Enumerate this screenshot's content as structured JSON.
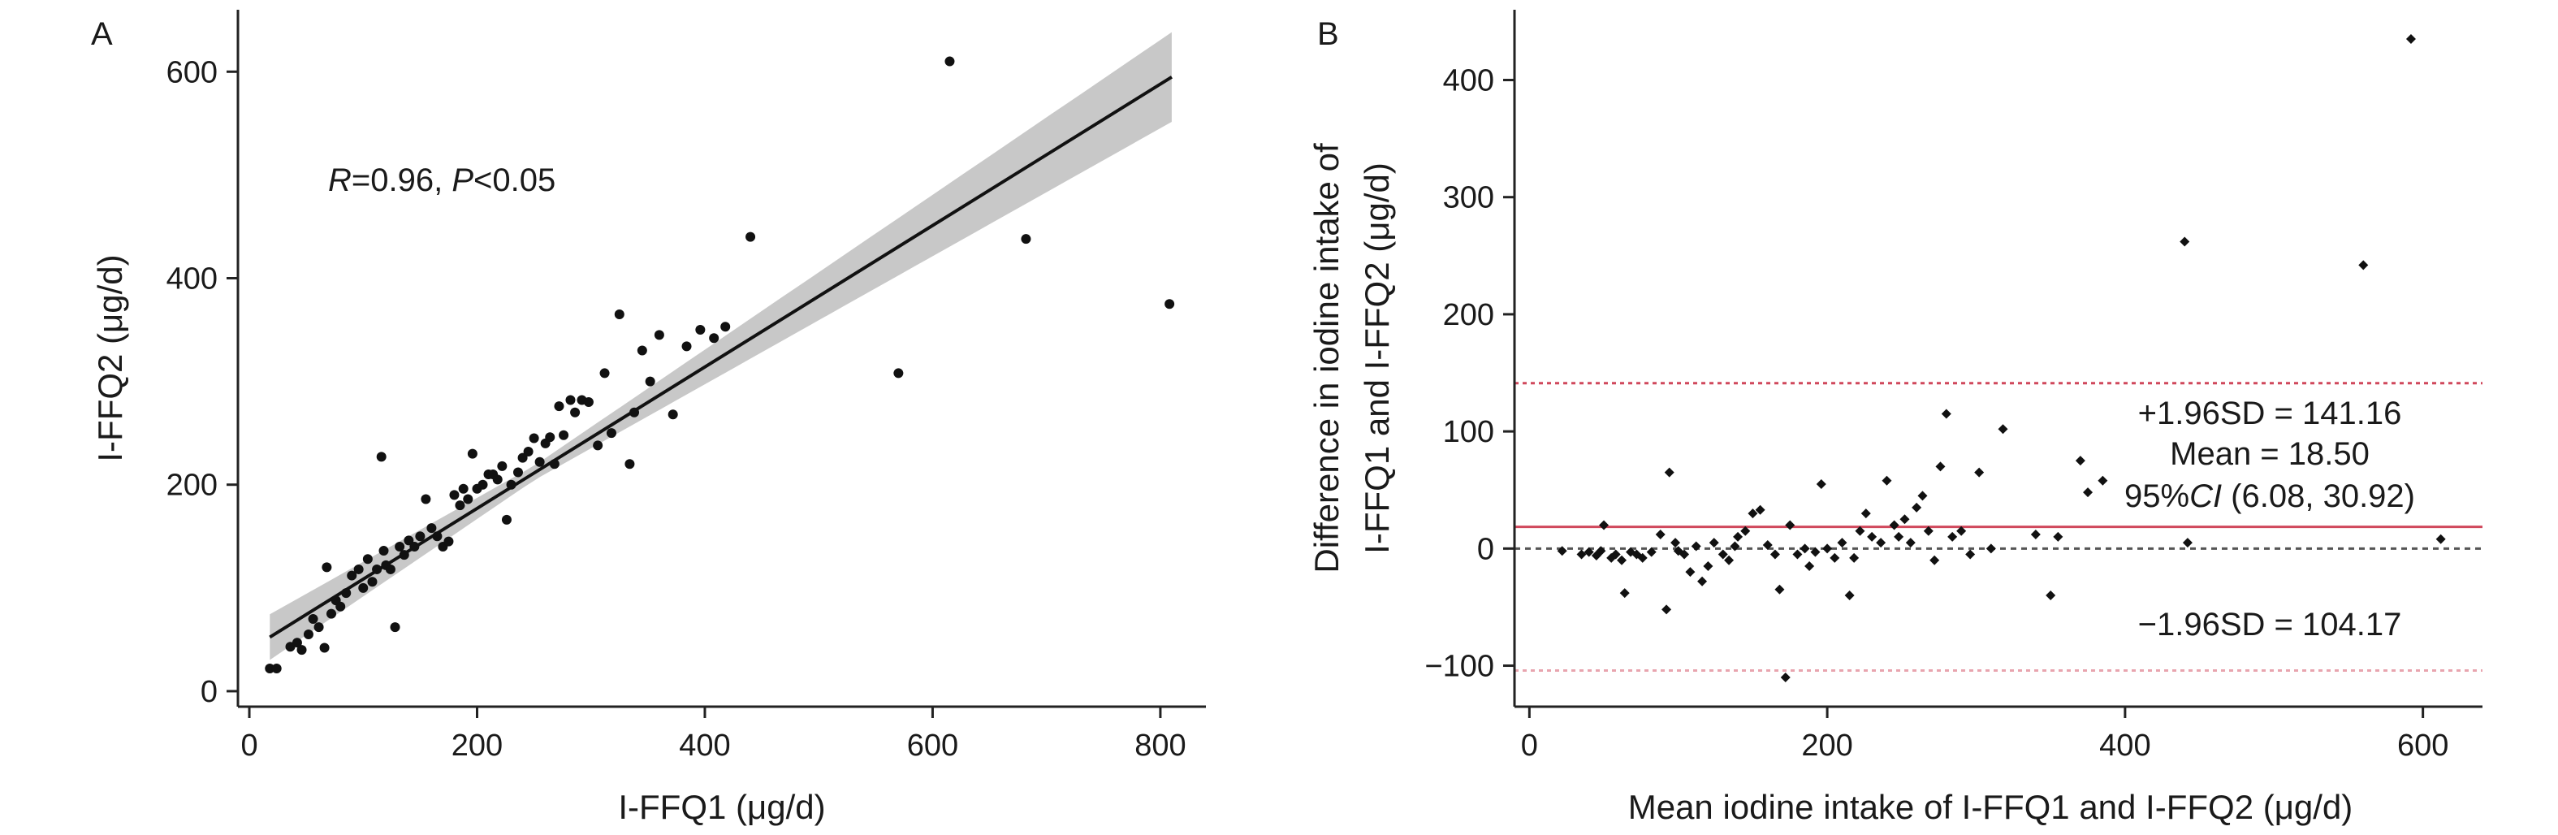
{
  "chart_data": [
    {
      "panel": "A",
      "type": "scatter",
      "xlabel": "I-FFQ1 (μg/d)",
      "ylabel": "I-FFQ2 (μg/d)",
      "xlim": [
        -10,
        840
      ],
      "ylim": [
        -15,
        660
      ],
      "xticks": [
        "0",
        "200",
        "400",
        "600",
        "800"
      ],
      "yticks": [
        "0",
        "200",
        "400",
        "600"
      ],
      "annotation": {
        "R": "R",
        "r_value": "=0.96, ",
        "P": "P",
        "p_value": "<0.05"
      },
      "regression": {
        "intercept": 40,
        "slope": 0.685,
        "x_range": [
          18,
          810
        ]
      },
      "points": [
        [
          18,
          22
        ],
        [
          24,
          22
        ],
        [
          36,
          43
        ],
        [
          42,
          47
        ],
        [
          46,
          40
        ],
        [
          52,
          55
        ],
        [
          56,
          70
        ],
        [
          61,
          62
        ],
        [
          66,
          42
        ],
        [
          68,
          120
        ],
        [
          72,
          75
        ],
        [
          76,
          88
        ],
        [
          80,
          82
        ],
        [
          85,
          95
        ],
        [
          90,
          112
        ],
        [
          96,
          118
        ],
        [
          100,
          100
        ],
        [
          104,
          128
        ],
        [
          108,
          106
        ],
        [
          112,
          118
        ],
        [
          116,
          227
        ],
        [
          118,
          136
        ],
        [
          120,
          122
        ],
        [
          124,
          118
        ],
        [
          128,
          62
        ],
        [
          132,
          140
        ],
        [
          136,
          132
        ],
        [
          140,
          146
        ],
        [
          145,
          140
        ],
        [
          150,
          150
        ],
        [
          155,
          186
        ],
        [
          160,
          158
        ],
        [
          165,
          150
        ],
        [
          170,
          140
        ],
        [
          175,
          145
        ],
        [
          180,
          190
        ],
        [
          185,
          180
        ],
        [
          188,
          196
        ],
        [
          192,
          186
        ],
        [
          196,
          230
        ],
        [
          200,
          196
        ],
        [
          205,
          200
        ],
        [
          210,
          210
        ],
        [
          214,
          210
        ],
        [
          218,
          205
        ],
        [
          222,
          218
        ],
        [
          226,
          166
        ],
        [
          230,
          200
        ],
        [
          236,
          212
        ],
        [
          240,
          226
        ],
        [
          245,
          232
        ],
        [
          250,
          245
        ],
        [
          255,
          222
        ],
        [
          260,
          240
        ],
        [
          264,
          246
        ],
        [
          268,
          220
        ],
        [
          272,
          276
        ],
        [
          276,
          248
        ],
        [
          282,
          282
        ],
        [
          286,
          270
        ],
        [
          292,
          282
        ],
        [
          298,
          280
        ],
        [
          306,
          238
        ],
        [
          312,
          308
        ],
        [
          318,
          250
        ],
        [
          325,
          365
        ],
        [
          334,
          220
        ],
        [
          338,
          270
        ],
        [
          345,
          330
        ],
        [
          352,
          300
        ],
        [
          360,
          345
        ],
        [
          372,
          268
        ],
        [
          384,
          334
        ],
        [
          396,
          350
        ],
        [
          408,
          342
        ],
        [
          418,
          353
        ],
        [
          440,
          440
        ],
        [
          570,
          308
        ],
        [
          615,
          610
        ],
        [
          682,
          438
        ],
        [
          808,
          375
        ]
      ]
    },
    {
      "panel": "B",
      "type": "scatter",
      "xlabel": "Mean iodine intake of I-FFQ1 and I-FFQ2 (μg/d)",
      "ylabel_line1": "Difference in iodine intake of",
      "ylabel_line2": "I-FFQ1 and I-FFQ2 (μg/d)",
      "xlim": [
        -10,
        640
      ],
      "ylim": [
        -135,
        460
      ],
      "xticks": [
        "0",
        "200",
        "400",
        "600"
      ],
      "yticks": [
        "−100",
        "0",
        "100",
        "200",
        "300",
        "400"
      ],
      "mean_line": 18.5,
      "upper_loa": 141.16,
      "lower_loa": -104.17,
      "annotations": {
        "upper": "+1.96SD = 141.16",
        "mean": "Mean = 18.50",
        "ci_prefix": "95%",
        "ci_italic": "CI",
        "ci_suffix": " (6.08, 30.92)",
        "lower": "−1.96SD = 104.17"
      },
      "colors": {
        "mean_line": "#d0485c",
        "upper_line": "#d0485c",
        "lower_line": "#e8a4ae",
        "zero_line": "#555555"
      },
      "points": [
        [
          22,
          -2
        ],
        [
          35,
          -5
        ],
        [
          40,
          -3
        ],
        [
          45,
          -6
        ],
        [
          48,
          -2
        ],
        [
          50,
          20
        ],
        [
          55,
          -8
        ],
        [
          58,
          -5
        ],
        [
          62,
          -10
        ],
        [
          64,
          -38
        ],
        [
          68,
          -3
        ],
        [
          72,
          -5
        ],
        [
          76,
          -8
        ],
        [
          82,
          -3
        ],
        [
          88,
          12
        ],
        [
          92,
          -52
        ],
        [
          94,
          65
        ],
        [
          98,
          5
        ],
        [
          100,
          -2
        ],
        [
          104,
          -5
        ],
        [
          108,
          -20
        ],
        [
          112,
          2
        ],
        [
          116,
          -28
        ],
        [
          120,
          -15
        ],
        [
          124,
          5
        ],
        [
          130,
          -5
        ],
        [
          134,
          -10
        ],
        [
          138,
          2
        ],
        [
          140,
          10
        ],
        [
          145,
          15
        ],
        [
          150,
          30
        ],
        [
          155,
          33
        ],
        [
          160,
          3
        ],
        [
          165,
          -5
        ],
        [
          168,
          -35
        ],
        [
          172,
          -110
        ],
        [
          175,
          20
        ],
        [
          180,
          -5
        ],
        [
          185,
          0
        ],
        [
          188,
          -15
        ],
        [
          192,
          -3
        ],
        [
          196,
          55
        ],
        [
          200,
          0
        ],
        [
          205,
          -8
        ],
        [
          210,
          5
        ],
        [
          215,
          -40
        ],
        [
          218,
          -8
        ],
        [
          222,
          15
        ],
        [
          226,
          30
        ],
        [
          230,
          10
        ],
        [
          236,
          5
        ],
        [
          240,
          58
        ],
        [
          245,
          20
        ],
        [
          248,
          10
        ],
        [
          252,
          25
        ],
        [
          256,
          5
        ],
        [
          260,
          35
        ],
        [
          264,
          45
        ],
        [
          268,
          15
        ],
        [
          272,
          -10
        ],
        [
          276,
          70
        ],
        [
          280,
          115
        ],
        [
          284,
          10
        ],
        [
          290,
          15
        ],
        [
          296,
          -5
        ],
        [
          302,
          65
        ],
        [
          310,
          0
        ],
        [
          318,
          102
        ],
        [
          340,
          12
        ],
        [
          350,
          -40
        ],
        [
          355,
          10
        ],
        [
          370,
          75
        ],
        [
          375,
          48
        ],
        [
          385,
          58
        ],
        [
          440,
          262
        ],
        [
          442,
          5
        ],
        [
          560,
          242
        ],
        [
          592,
          435
        ],
        [
          612,
          8
        ]
      ]
    }
  ]
}
